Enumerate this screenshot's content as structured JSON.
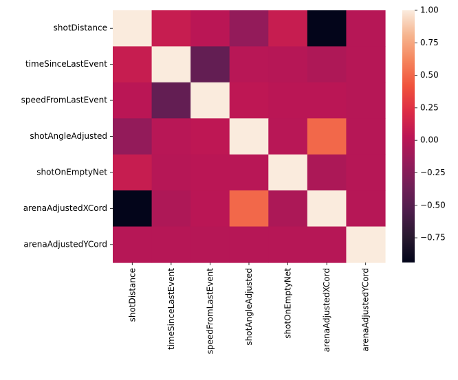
{
  "chart_data": {
    "type": "heatmap",
    "title": "",
    "xlabel": "",
    "ylabel": "",
    "rows": [
      "shotDistance",
      "timeSinceLastEvent",
      "speedFromLastEvent",
      "shotAngleAdjusted",
      "shotOnEmptyNet",
      "arenaAdjustedXCord",
      "arenaAdjustedYCord"
    ],
    "columns": [
      "shotDistance",
      "timeSinceLastEvent",
      "speedFromLastEvent",
      "shotAngleAdjusted",
      "shotOnEmptyNet",
      "arenaAdjustedXCord",
      "arenaAdjustedYCord"
    ],
    "values": [
      [
        1.0,
        0.09,
        0.02,
        -0.18,
        0.09,
        -0.94,
        0.0
      ],
      [
        0.09,
        1.0,
        -0.43,
        0.01,
        0.0,
        -0.04,
        0.0
      ],
      [
        0.02,
        -0.43,
        1.0,
        0.04,
        0.02,
        0.02,
        0.0
      ],
      [
        -0.18,
        0.01,
        0.04,
        1.0,
        0.01,
        0.5,
        0.0
      ],
      [
        0.09,
        0.0,
        0.02,
        0.01,
        1.0,
        -0.05,
        0.0
      ],
      [
        -0.94,
        -0.04,
        0.02,
        0.5,
        -0.05,
        1.0,
        0.0
      ],
      [
        0.0,
        0.0,
        0.0,
        0.0,
        0.0,
        0.0,
        1.0
      ]
    ],
    "colorbar": {
      "colormap": "rocket",
      "vmin": -0.94,
      "vmax": 1.0,
      "ticks": [
        1.0,
        0.75,
        0.5,
        0.25,
        0.0,
        -0.25,
        -0.5,
        -0.75
      ],
      "tick_labels": [
        "1.00",
        "0.75",
        "0.50",
        "0.25",
        "0.00",
        "−0.25",
        "−0.50",
        "−0.75"
      ]
    }
  }
}
